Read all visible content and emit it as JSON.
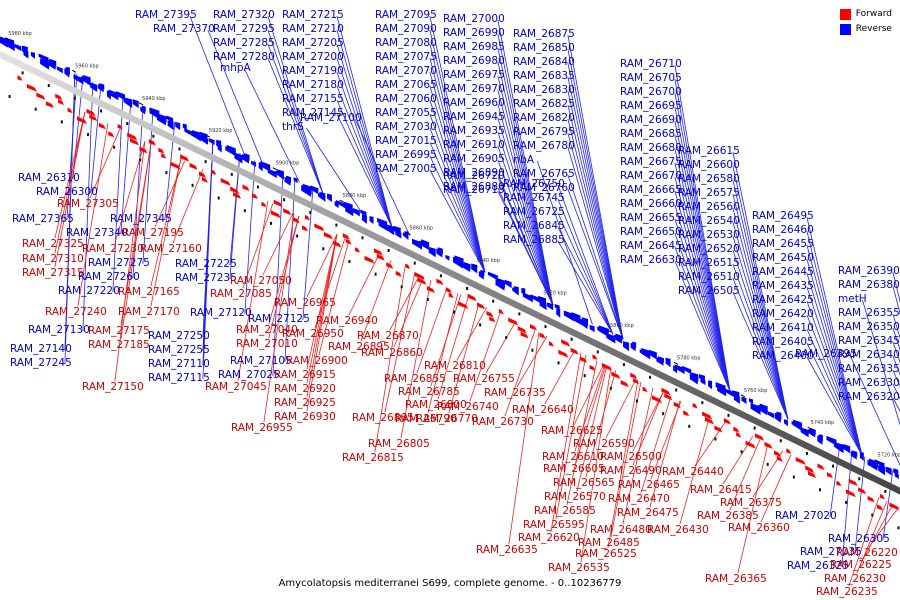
{
  "caption": "Amycolatopsis mediterranei S699, complete genome. - 0..10236779",
  "legend": [
    {
      "label": "Forward",
      "color": "#ff0000"
    },
    {
      "label": "Reverse",
      "color": "#0000ff"
    }
  ],
  "scale_labels": [
    "5980 kbp",
    "5960 kbp",
    "5940 kbp",
    "5920 kbp",
    "5900 kbp",
    "5880 kbp",
    "5860 kbp",
    "5840 kbp",
    "5820 kbp",
    "5800 kbp",
    "5780 kbp",
    "5760 kbp",
    "5740 kbp",
    "5720 kbp"
  ],
  "reverse_genes": [
    "RAM_27395",
    "RAM_27370",
    "RAM_27320",
    "RAM_27295",
    "RAM_27285",
    "RAM_27280",
    "mhpA",
    "RAM_27215",
    "RAM_27210",
    "RAM_27205",
    "RAM_27200",
    "RAM_27190",
    "RAM_27180",
    "RAM_27155",
    "RAM_27145",
    "thrS",
    "RAM_27100",
    "RAM_27095",
    "RAM_27090",
    "RAM_27080",
    "RAM_27075",
    "RAM_27070",
    "RAM_27065",
    "RAM_27060",
    "RAM_27055",
    "RAM_27030",
    "RAM_27015",
    "RAM_26995",
    "RAM_27005",
    "RAM_27000",
    "RAM_26990",
    "RAM_26985",
    "RAM_26980",
    "RAM_26975",
    "RAM_26970",
    "RAM_26960",
    "RAM_26945",
    "RAM_26935",
    "RAM_26910",
    "RAM_26905",
    "RAM_26890",
    "RAM_26880",
    "RAM_26875",
    "RAM_26850",
    "RAM_26840",
    "RAM_26835",
    "RAM_26830",
    "RAM_26825",
    "RAM_26820",
    "RAM_26795",
    "RAM_26780",
    "ribA",
    "RAM_26765",
    "RAM_26760",
    "RAM_26750",
    "RAM_26745",
    "RAM_26725",
    "RAM_26845",
    "RAM_26885",
    "RAM_26720",
    "RAM_26715",
    "RAM_26710",
    "RAM_26705",
    "RAM_26700",
    "RAM_26695",
    "RAM_26690",
    "RAM_26685",
    "RAM_26680",
    "RAM_26675",
    "RAM_26670",
    "RAM_26665",
    "RAM_26660",
    "RAM_26655",
    "RAM_26650",
    "RAM_26645",
    "RAM_26630",
    "RAM_26615",
    "RAM_26600",
    "RAM_26580",
    "RAM_26575",
    "RAM_26560",
    "RAM_26540",
    "RAM_26530",
    "RAM_26520",
    "RAM_26515",
    "RAM_26510",
    "RAM_26505",
    "RAM_26495",
    "RAM_26460",
    "RAM_26455",
    "RAM_26450",
    "RAM_26445",
    "RAM_26435",
    "RAM_26425",
    "RAM_26420",
    "RAM_26410",
    "RAM_26405",
    "RAM_26400",
    "RAM_26395",
    "RAM_26390",
    "RAM_26380",
    "metH",
    "RAM_26355",
    "RAM_26350",
    "RAM_26345",
    "RAM_26340",
    "RAM_26335",
    "RAM_26330",
    "RAM_26320",
    "RAM_26310",
    "RAM_26300",
    "RAM_27365",
    "RAM_27340",
    "RAM_27345",
    "RAM_27275",
    "RAM_27260",
    "RAM_27220",
    "RAM_27225",
    "RAM_27235",
    "RAM_27130",
    "RAM_27140",
    "RAM_27245",
    "RAM_27250",
    "RAM_27255",
    "RAM_27110",
    "RAM_27115",
    "RAM_27120",
    "RAM_27125",
    "RAM_27105",
    "RAM_27025",
    "RAM_27020",
    "RAM_27035",
    "RAM_26325",
    "RAM_26305",
    "RAM_26315",
    "RAM_26270"
  ],
  "forward_genes": [
    "RAM_27305",
    "RAM_27195",
    "RAM_27325",
    "RAM_27230",
    "RAM_27160",
    "RAM_27310",
    "RAM_27315",
    "RAM_27165",
    "RAM_27085",
    "RAM_27050",
    "RAM_27240",
    "RAM_27170",
    "RAM_27175",
    "RAM_27185",
    "RAM_27040",
    "RAM_27010",
    "RAM_27150",
    "RAM_27045",
    "RAM_26965",
    "RAM_26940",
    "RAM_26950",
    "RAM_26895",
    "RAM_26870",
    "RAM_26900",
    "RAM_26915",
    "RAM_26920",
    "RAM_26925",
    "RAM_26930",
    "RAM_26955",
    "RAM_26860",
    "RAM_26855",
    "RAM_26810",
    "RAM_26785",
    "RAM_26755",
    "RAM_26735",
    "RAM_26800",
    "RAM_26740",
    "RAM_26790",
    "RAM_26770",
    "RAM_26865",
    "RAM_26805",
    "RAM_26815",
    "RAM_26730",
    "RAM_26640",
    "RAM_26625",
    "RAM_26590",
    "RAM_26610",
    "RAM_26605",
    "RAM_26565",
    "RAM_26570",
    "RAM_26585",
    "RAM_26595",
    "RAM_26620",
    "RAM_26635",
    "RAM_26525",
    "RAM_26535",
    "RAM_26500",
    "RAM_26490",
    "RAM_26465",
    "RAM_26470",
    "RAM_26475",
    "RAM_26480",
    "RAM_26485",
    "RAM_26440",
    "RAM_26430",
    "RAM_26415",
    "RAM_26375",
    "RAM_26385",
    "RAM_26360",
    "RAM_26365",
    "RAM_26220",
    "RAM_26225",
    "RAM_26230",
    "RAM_26235"
  ]
}
